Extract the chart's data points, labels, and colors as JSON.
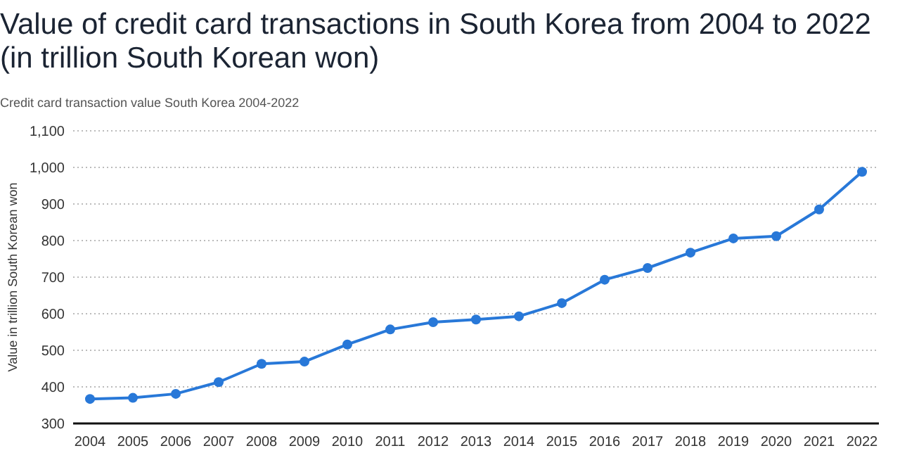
{
  "chart_data": {
    "type": "line",
    "title": "Value of credit card transactions in South Korea from 2004 to 2022 (in trillion South Korean won)",
    "subtitle": "Credit card transaction value South Korea 2004-2022",
    "ylabel": "Value in trillion South Korean won",
    "categories": [
      "2004",
      "2005",
      "2006",
      "2007",
      "2008",
      "2009",
      "2010",
      "2011",
      "2012",
      "2013",
      "2014",
      "2015",
      "2016",
      "2017",
      "2018",
      "2019",
      "2020",
      "2021",
      "2022"
    ],
    "series": [
      {
        "color": "#2878d8",
        "values": [
          367,
          370,
          381,
          413,
          463,
          469,
          516,
          557,
          577,
          584,
          593,
          629,
          693,
          725,
          767,
          806,
          812,
          885,
          988
        ]
      }
    ],
    "ylim": [
      300,
      1100
    ],
    "yticks": [
      300,
      400,
      500,
      600,
      700,
      800,
      900,
      {
        "value": 1000,
        "label": "1,000"
      },
      {
        "value": 1100,
        "label": "1,100"
      }
    ],
    "grid": "y",
    "marker": "circle",
    "line_style": "solid"
  }
}
